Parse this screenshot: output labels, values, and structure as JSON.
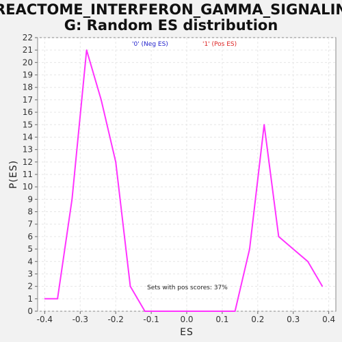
{
  "chart_data": {
    "type": "line",
    "title_line1": "REACTOME_INTERFERON_GAMMA_SIGNALIN",
    "title_line2": "G: Random ES distribution",
    "xlabel": "ES",
    "ylabel": "P(ES)",
    "xlim": [
      -0.42,
      0.42
    ],
    "ylim": [
      0,
      22
    ],
    "x_ticks": [
      "-0.4",
      "-0.3",
      "-0.2",
      "-0.1",
      "0.0",
      "0.1",
      "0.2",
      "0.3",
      "0.4"
    ],
    "x_tick_values": [
      -0.4,
      -0.3,
      -0.2,
      -0.1,
      0.0,
      0.1,
      0.2,
      0.3,
      0.4
    ],
    "y_ticks": [
      0,
      1,
      2,
      3,
      4,
      5,
      6,
      7,
      8,
      9,
      10,
      11,
      12,
      13,
      14,
      15,
      16,
      17,
      18,
      19,
      20,
      21,
      22
    ],
    "grid": true,
    "series": [
      {
        "color": "#ff33ff",
        "x": [
          -0.4,
          -0.364,
          -0.323,
          -0.282,
          -0.241,
          -0.2,
          -0.159,
          -0.118,
          -0.077,
          -0.036,
          0.005,
          0.046,
          0.087,
          0.128,
          0.136,
          0.177,
          0.218,
          0.259,
          0.3,
          0.341,
          0.382
        ],
        "y": [
          1,
          1,
          9,
          21,
          17,
          12,
          2,
          0,
          0,
          0,
          0,
          0,
          0,
          0,
          0,
          5,
          15,
          6,
          5,
          4,
          2
        ]
      }
    ],
    "legend": [
      {
        "label": "'0' (Neg ES)",
        "color": "#2222cc"
      },
      {
        "label": "'1' (Pos ES)",
        "color": "#dd2222"
      }
    ],
    "annotation": "Sets with pos scores: 37%"
  }
}
